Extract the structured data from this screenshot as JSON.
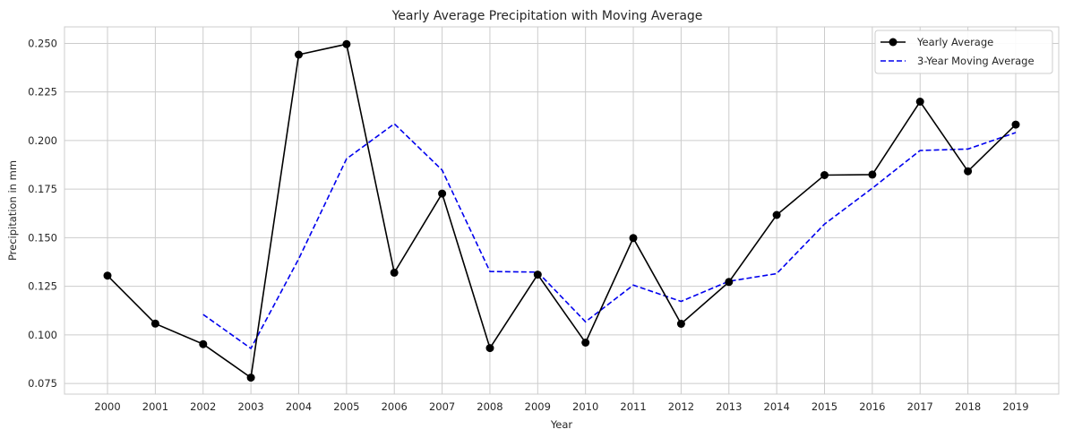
{
  "chart_data": {
    "type": "line",
    "title": "Yearly Average Precipitation with Moving Average",
    "xlabel": "Year",
    "ylabel": "Precipitation in mm",
    "x": [
      2000,
      2001,
      2002,
      2003,
      2004,
      2005,
      2006,
      2007,
      2008,
      2009,
      2010,
      2011,
      2012,
      2013,
      2014,
      2015,
      2016,
      2017,
      2018,
      2019
    ],
    "xlim": [
      1999.1,
      2019.9
    ],
    "ylim": [
      0.0695,
      0.2585
    ],
    "yticks": [
      0.075,
      0.1,
      0.125,
      0.15,
      0.175,
      0.2,
      0.225,
      0.25
    ],
    "ytick_labels": [
      "0.075",
      "0.100",
      "0.125",
      "0.150",
      "0.175",
      "0.200",
      "0.225",
      "0.250"
    ],
    "grid": true,
    "legend_position": "top-right",
    "series": [
      {
        "name": "Yearly Average",
        "style": "solid-with-markers",
        "color": "#000000",
        "values": [
          0.1305,
          0.1058,
          0.0952,
          0.078,
          0.2442,
          0.2496,
          0.132,
          0.1727,
          0.0932,
          0.131,
          0.096,
          0.1498,
          0.1057,
          0.1272,
          0.1617,
          0.1822,
          0.1825,
          0.22,
          0.1842,
          0.2082
        ]
      },
      {
        "name": "3-Year Moving Average",
        "style": "dashed",
        "color": "#0000ee",
        "values": [
          null,
          null,
          0.1105,
          0.093,
          0.1391,
          0.1906,
          0.2086,
          0.1848,
          0.1326,
          0.1323,
          0.1067,
          0.1256,
          0.1172,
          0.1276,
          0.1315,
          0.157,
          0.1755,
          0.1949,
          0.1956,
          0.2041
        ]
      }
    ]
  }
}
